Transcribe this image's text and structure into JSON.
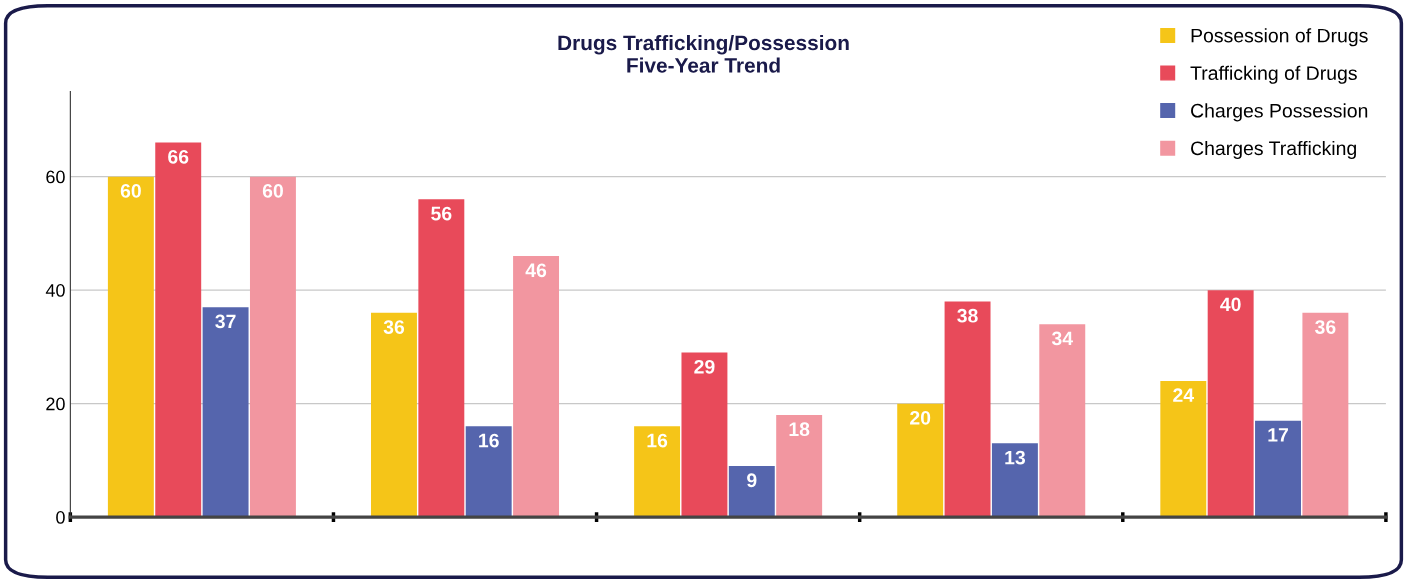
{
  "chart_data": {
    "type": "bar",
    "title": "Drugs Trafficking/Possession\nFive-Year Trend",
    "categories": [
      null,
      null,
      null,
      null,
      null
    ],
    "series": [
      {
        "name": "Possession of Drugs",
        "color": "#f5c518",
        "values": [
          60,
          36,
          16,
          20,
          24
        ]
      },
      {
        "name": "Trafficking of Drugs",
        "color": "#e84a5a",
        "values": [
          66,
          56,
          29,
          38,
          40
        ]
      },
      {
        "name": "Charges Possession",
        "color": "#5565ad",
        "values": [
          37,
          16,
          9,
          13,
          17
        ]
      },
      {
        "name": "Charges Trafficking",
        "color": "#f296a0",
        "values": [
          60,
          46,
          18,
          34,
          36
        ]
      }
    ],
    "ylim": [
      0,
      75
    ],
    "yticks": [
      0,
      20,
      40,
      60
    ],
    "grid": "y",
    "legend": "top right",
    "data_labels": true
  }
}
